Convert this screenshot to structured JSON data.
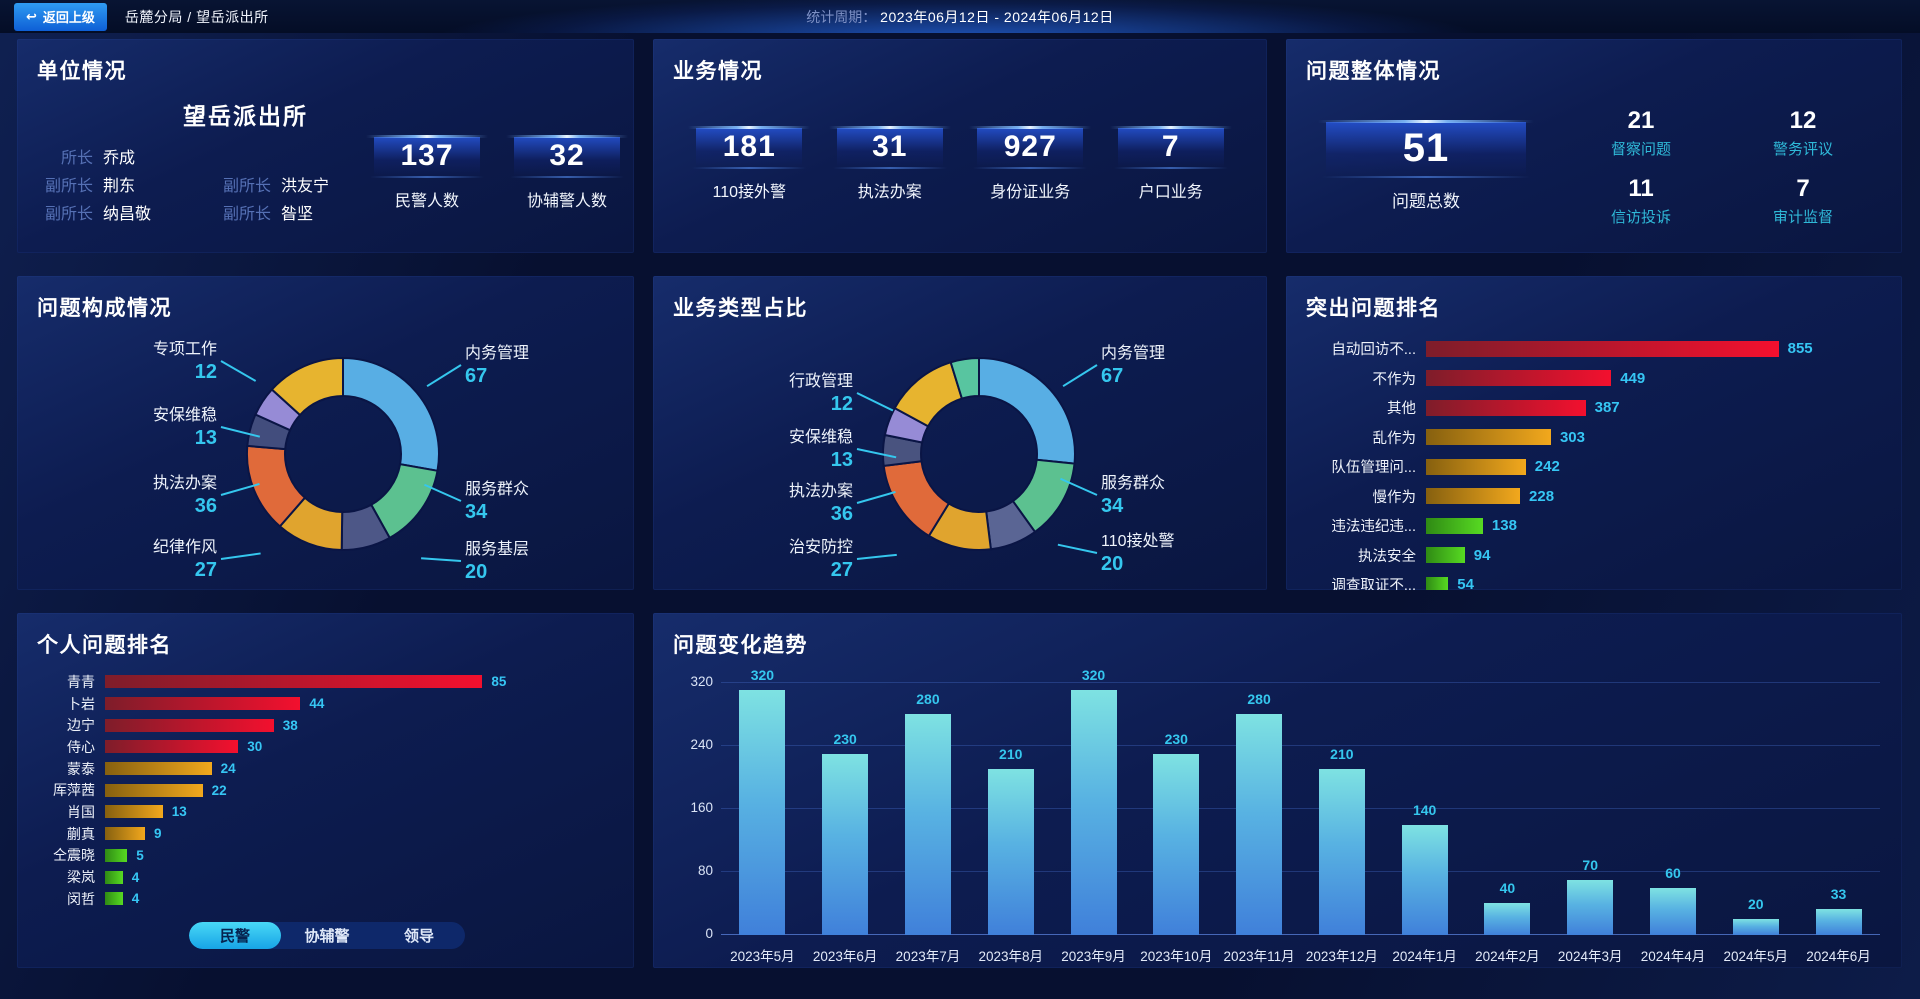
{
  "topbar": {
    "back_label": "返回上级",
    "breadcrumb": "岳麓分局 / 望岳派出所",
    "period_label": "统计周期：",
    "period_value": "2023年06月12日 - 2024年06月12日"
  },
  "unit_panel": {
    "title": "单位情况",
    "station_name": "望岳派出所",
    "leaders": [
      {
        "role": "所长",
        "name": "乔成"
      },
      {
        "role": "副所长",
        "name": "荆东"
      },
      {
        "role": "副所长",
        "name": "洪友宁"
      },
      {
        "role": "副所长",
        "name": "纳昌敬"
      },
      {
        "role": "副所长",
        "name": "昝坚"
      }
    ],
    "stats": [
      {
        "value": "137",
        "label": "民警人数"
      },
      {
        "value": "32",
        "label": "协辅警人数"
      }
    ]
  },
  "business_panel": {
    "title": "业务情况",
    "stats": [
      {
        "value": "181",
        "label": "110接外警"
      },
      {
        "value": "31",
        "label": "执法办案"
      },
      {
        "value": "927",
        "label": "身份证业务"
      },
      {
        "value": "7",
        "label": "户口业务"
      }
    ]
  },
  "problem_overview_panel": {
    "title": "问题整体情况",
    "total": {
      "value": "51",
      "label": "问题总数"
    },
    "stats": [
      {
        "value": "21",
        "label": "督察问题"
      },
      {
        "value": "12",
        "label": "警务评议"
      },
      {
        "value": "11",
        "label": "信访投诉"
      },
      {
        "value": "7",
        "label": "审计监督"
      }
    ]
  },
  "palette": {
    "accent_cyan": "#35c7ee",
    "bar_red": [
      "#7e1d2a",
      "#f3102e"
    ],
    "bar_gold": [
      "#86600f",
      "#f2a81d"
    ],
    "bar_green": [
      "#2f8a14",
      "#57da22"
    ],
    "trend_bar": [
      "#7ee2e2",
      "#4080da"
    ]
  },
  "chart_data": [
    {
      "id": "problem_composition",
      "type": "pie",
      "title": "问题构成情况",
      "segments": [
        {
          "label": "内务管理",
          "value": 67,
          "color": "#58aee4"
        },
        {
          "label": "服务群众",
          "value": 34,
          "color": "#5cc190"
        },
        {
          "label": "服务基层",
          "value": 20,
          "color": "#4d5787"
        },
        {
          "label": "纪律作风",
          "value": 27,
          "color": "#e0a42e"
        },
        {
          "label": "执法办案",
          "value": 36,
          "color": "#e06a3a"
        },
        {
          "label": "安保维稳",
          "value": 13,
          "color": "#424d7d"
        },
        {
          "label": "专项工作",
          "value": 12,
          "color": "#968bd6"
        },
        {
          "label": "",
          "value": 32,
          "color": "#e7b42f"
        }
      ]
    },
    {
      "id": "business_type",
      "type": "pie",
      "title": "业务类型占比",
      "segments": [
        {
          "label": "内务管理",
          "value": 67,
          "color": "#58aee4"
        },
        {
          "label": "服务群众",
          "value": 34,
          "color": "#5cc190"
        },
        {
          "label": "110接处警",
          "value": 20,
          "color": "#5a6594"
        },
        {
          "label": "治安防控",
          "value": 27,
          "color": "#e0a42e"
        },
        {
          "label": "执法办案",
          "value": 36,
          "color": "#e06a3a"
        },
        {
          "label": "安保维稳",
          "value": 13,
          "color": "#49537f"
        },
        {
          "label": "行政管理",
          "value": 12,
          "color": "#968bd6"
        },
        {
          "label": "",
          "value": 31,
          "color": "#e7b42f"
        },
        {
          "label": "",
          "value": 12,
          "color": "#58c5a0"
        }
      ]
    },
    {
      "id": "top_problems",
      "type": "bar-horizontal",
      "title": "突出问题排名",
      "max": 855,
      "items": [
        {
          "label": "自动回访不...",
          "value": 855,
          "tier": "red"
        },
        {
          "label": "不作为",
          "value": 449,
          "tier": "red"
        },
        {
          "label": "其他",
          "value": 387,
          "tier": "red"
        },
        {
          "label": "乱作为",
          "value": 303,
          "tier": "gold"
        },
        {
          "label": "队伍管理问...",
          "value": 242,
          "tier": "gold"
        },
        {
          "label": "慢作为",
          "value": 228,
          "tier": "gold"
        },
        {
          "label": "违法违纪违...",
          "value": 138,
          "tier": "green"
        },
        {
          "label": "执法安全",
          "value": 94,
          "tier": "green"
        },
        {
          "label": "调查取证不...",
          "value": 54,
          "tier": "green"
        }
      ]
    },
    {
      "id": "personal_ranking",
      "type": "bar-horizontal",
      "title": "个人问题排名",
      "max": 85,
      "items": [
        {
          "label": "青青",
          "value": 85,
          "tier": "red"
        },
        {
          "label": "卜岩",
          "value": 44,
          "tier": "red"
        },
        {
          "label": "边宁",
          "value": 38,
          "tier": "red"
        },
        {
          "label": "侍心",
          "value": 30,
          "tier": "red"
        },
        {
          "label": "蒙泰",
          "value": 24,
          "tier": "gold"
        },
        {
          "label": "厍萍茜",
          "value": 22,
          "tier": "gold"
        },
        {
          "label": "肖国",
          "value": 13,
          "tier": "gold"
        },
        {
          "label": "蒯真",
          "value": 9,
          "tier": "gold"
        },
        {
          "label": "仝震晓",
          "value": 5,
          "tier": "green"
        },
        {
          "label": "梁岚",
          "value": 4,
          "tier": "green"
        },
        {
          "label": "闵哲",
          "value": 4,
          "tier": "green"
        }
      ],
      "tabs": {
        "items": [
          "民警",
          "协辅警",
          "领导"
        ],
        "active": 0
      }
    },
    {
      "id": "problem_trend",
      "type": "bar",
      "title": "问题变化趋势",
      "categories": [
        "2023年5月",
        "2023年6月",
        "2023年7月",
        "2023年8月",
        "2023年9月",
        "2023年10月",
        "2023年11月",
        "2023年12月",
        "2024年1月",
        "2024年2月",
        "2024年3月",
        "2024年4月",
        "2024年5月",
        "2024年6月"
      ],
      "values": [
        320,
        230,
        280,
        210,
        320,
        230,
        280,
        210,
        140,
        40,
        70,
        60,
        20,
        33
      ],
      "ylabel": "",
      "xlabel": "",
      "yticks": [
        0,
        80,
        160,
        240,
        320
      ],
      "ymax": 340,
      "grid": true
    }
  ]
}
